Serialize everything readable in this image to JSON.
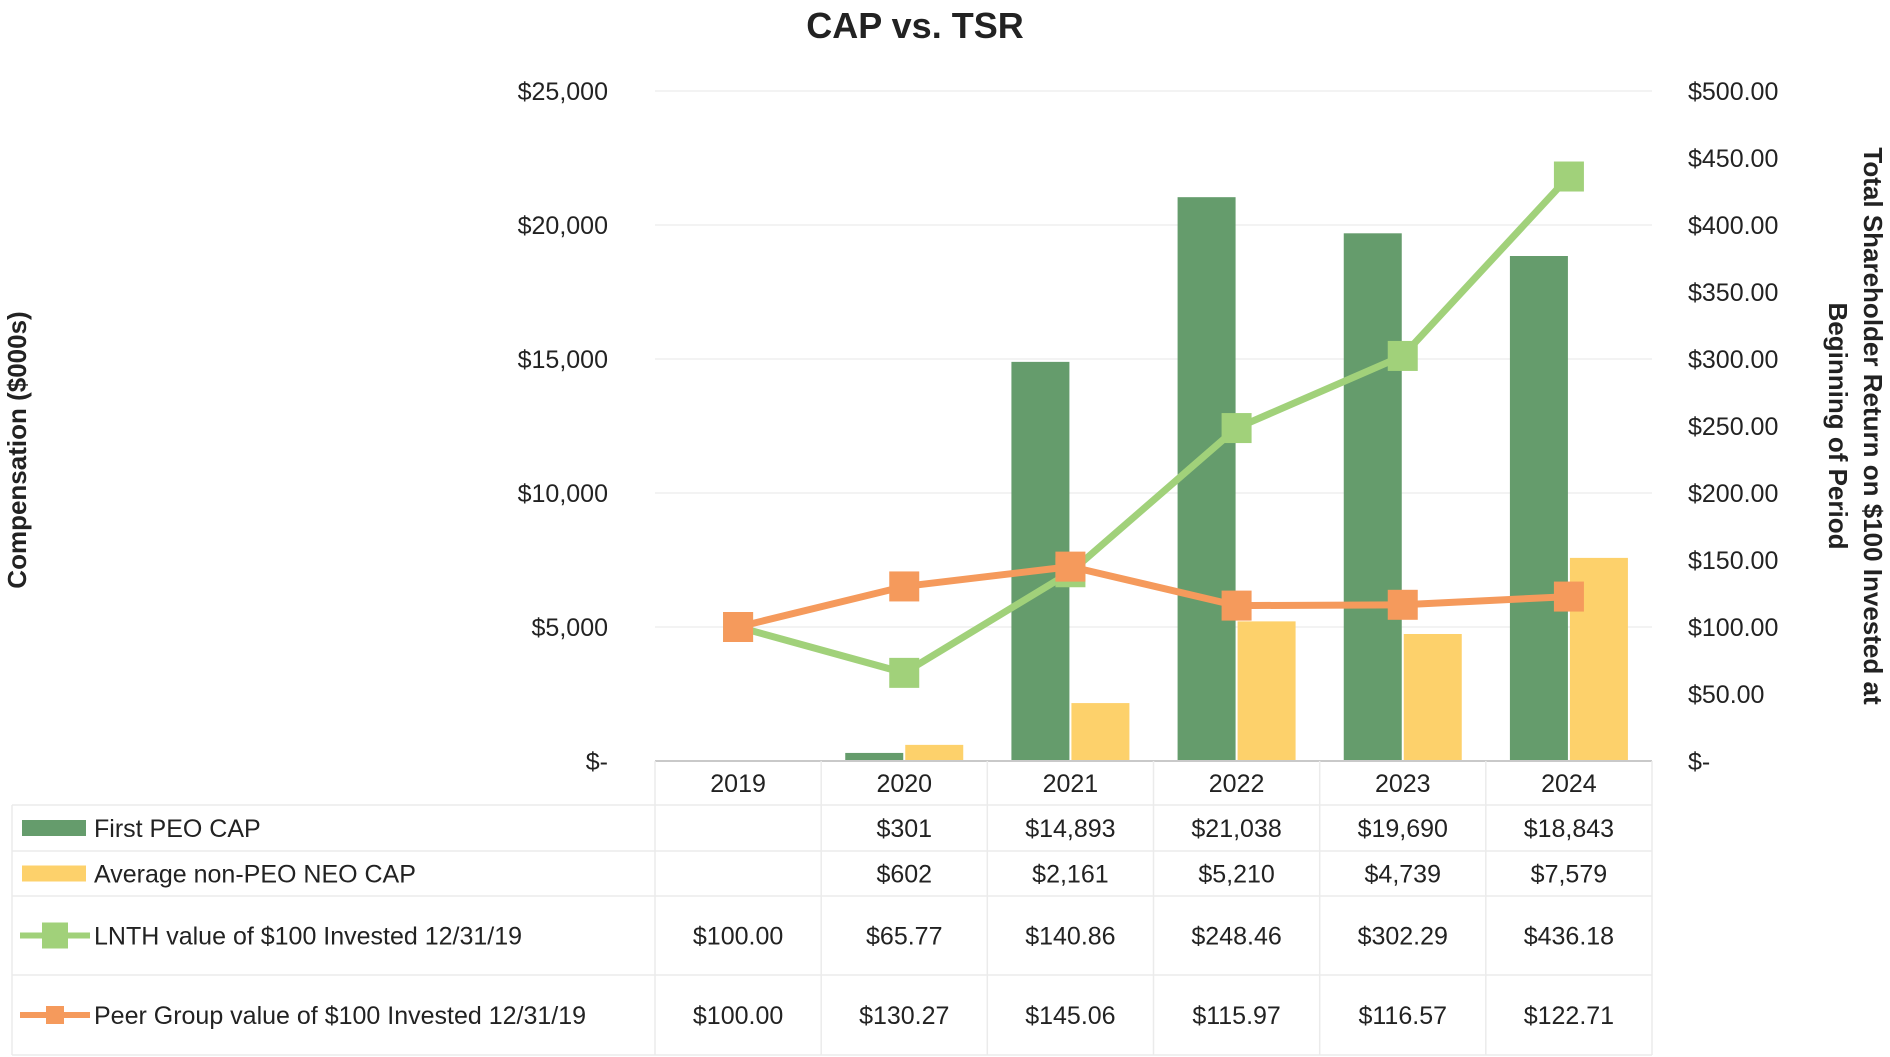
{
  "chart_data": {
    "type": "bar",
    "title": "CAP vs. TSR",
    "ylabel": "Compensation ($000s)",
    "ylabel_right": "Total Shareholder Return on $100 Invested at Beginning of Period",
    "ylabel_right_lines": [
      "Total Shareholder Return on $100 Invested at",
      "Beginning of Period"
    ],
    "categories": [
      "2019",
      "2020",
      "2021",
      "2022",
      "2023",
      "2024"
    ],
    "ylim": [
      0,
      25000
    ],
    "ylim_right": [
      0,
      500
    ],
    "y_ticks": [
      {
        "value": 0,
        "label": "$-"
      },
      {
        "value": 5000,
        "label": "$5,000"
      },
      {
        "value": 10000,
        "label": "$10,000"
      },
      {
        "value": 15000,
        "label": "$15,000"
      },
      {
        "value": 20000,
        "label": "$20,000"
      },
      {
        "value": 25000,
        "label": "$25,000"
      }
    ],
    "y_ticks_right": [
      {
        "value": 0,
        "label": "$-"
      },
      {
        "value": 50,
        "label": "$50.00"
      },
      {
        "value": 100,
        "label": "$100.00"
      },
      {
        "value": 150,
        "label": "$150.00"
      },
      {
        "value": 200,
        "label": "$200.00"
      },
      {
        "value": 250,
        "label": "$250.00"
      },
      {
        "value": 300,
        "label": "$300.00"
      },
      {
        "value": 350,
        "label": "$350.00"
      },
      {
        "value": 400,
        "label": "$400.00"
      },
      {
        "value": 450,
        "label": "$450.00"
      },
      {
        "value": 500,
        "label": "$500.00"
      }
    ],
    "series": [
      {
        "name": "First PEO CAP",
        "kind": "bar",
        "axis": "left",
        "color": "#659c6c",
        "values": [
          null,
          301,
          14893,
          21038,
          19690,
          18843
        ],
        "table_labels": [
          "",
          "$301",
          "$14,893",
          "$21,038",
          "$19,690",
          "$18,843"
        ]
      },
      {
        "name": "Average non-PEO NEO CAP",
        "kind": "bar",
        "axis": "left",
        "color": "#fdd16b",
        "values": [
          null,
          602,
          2161,
          5210,
          4739,
          7579
        ],
        "table_labels": [
          "",
          "$602",
          "$2,161",
          "$5,210",
          "$4,739",
          "$7,579"
        ]
      },
      {
        "name": "LNTH value of $100 Invested 12/31/19",
        "kind": "line",
        "axis": "right",
        "color": "#a1d17a",
        "values": [
          100.0,
          65.77,
          140.86,
          248.46,
          302.29,
          436.18
        ],
        "table_labels": [
          "$100.00",
          "$65.77",
          "$140.86",
          "$248.46",
          "$302.29",
          "$436.18"
        ]
      },
      {
        "name": "Peer Group value of $100 Invested 12/31/19",
        "kind": "line",
        "axis": "right",
        "color": "#f59a5c",
        "values": [
          100.0,
          130.27,
          145.06,
          115.97,
          116.57,
          122.71
        ],
        "table_labels": [
          "$100.00",
          "$130.27",
          "$145.06",
          "$115.97",
          "$116.57",
          "$122.71"
        ]
      }
    ],
    "grid": true,
    "legend": "data-table-below"
  }
}
